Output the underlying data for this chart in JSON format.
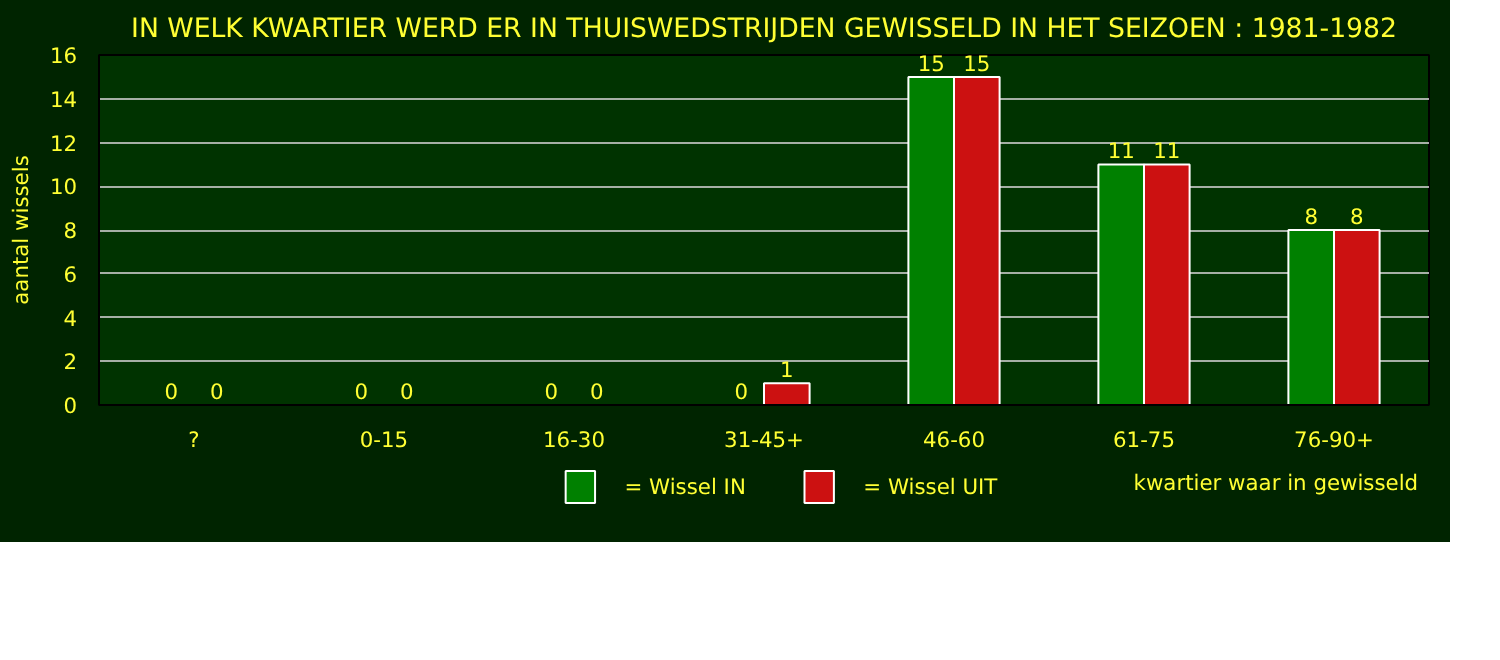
{
  "chart_data": {
    "type": "bar",
    "title": "IN WELK KWARTIER WERD ER IN THUISWEDSTRIJDEN GEWISSELD IN HET SEIZOEN : 1981-1982",
    "xlabel": "kwartier waar in gewisseld",
    "ylabel": "aantal wissels",
    "categories": [
      "?",
      "0-15",
      "16-30",
      "31-45+",
      "46-60",
      "61-75",
      "76-90+"
    ],
    "series": [
      {
        "name": "= Wissel IN",
        "color": "#008000",
        "values": [
          0,
          0,
          0,
          0,
          15,
          11,
          8
        ]
      },
      {
        "name": "= Wissel UIT",
        "color": "#cc1111",
        "values": [
          0,
          0,
          0,
          1,
          15,
          11,
          8
        ]
      }
    ],
    "ylim": [
      0,
      16
    ],
    "yticks": [
      0,
      2,
      4,
      6,
      8,
      10,
      12,
      14,
      16
    ],
    "grid": "y",
    "legend": "bottom",
    "data_labels": true
  }
}
